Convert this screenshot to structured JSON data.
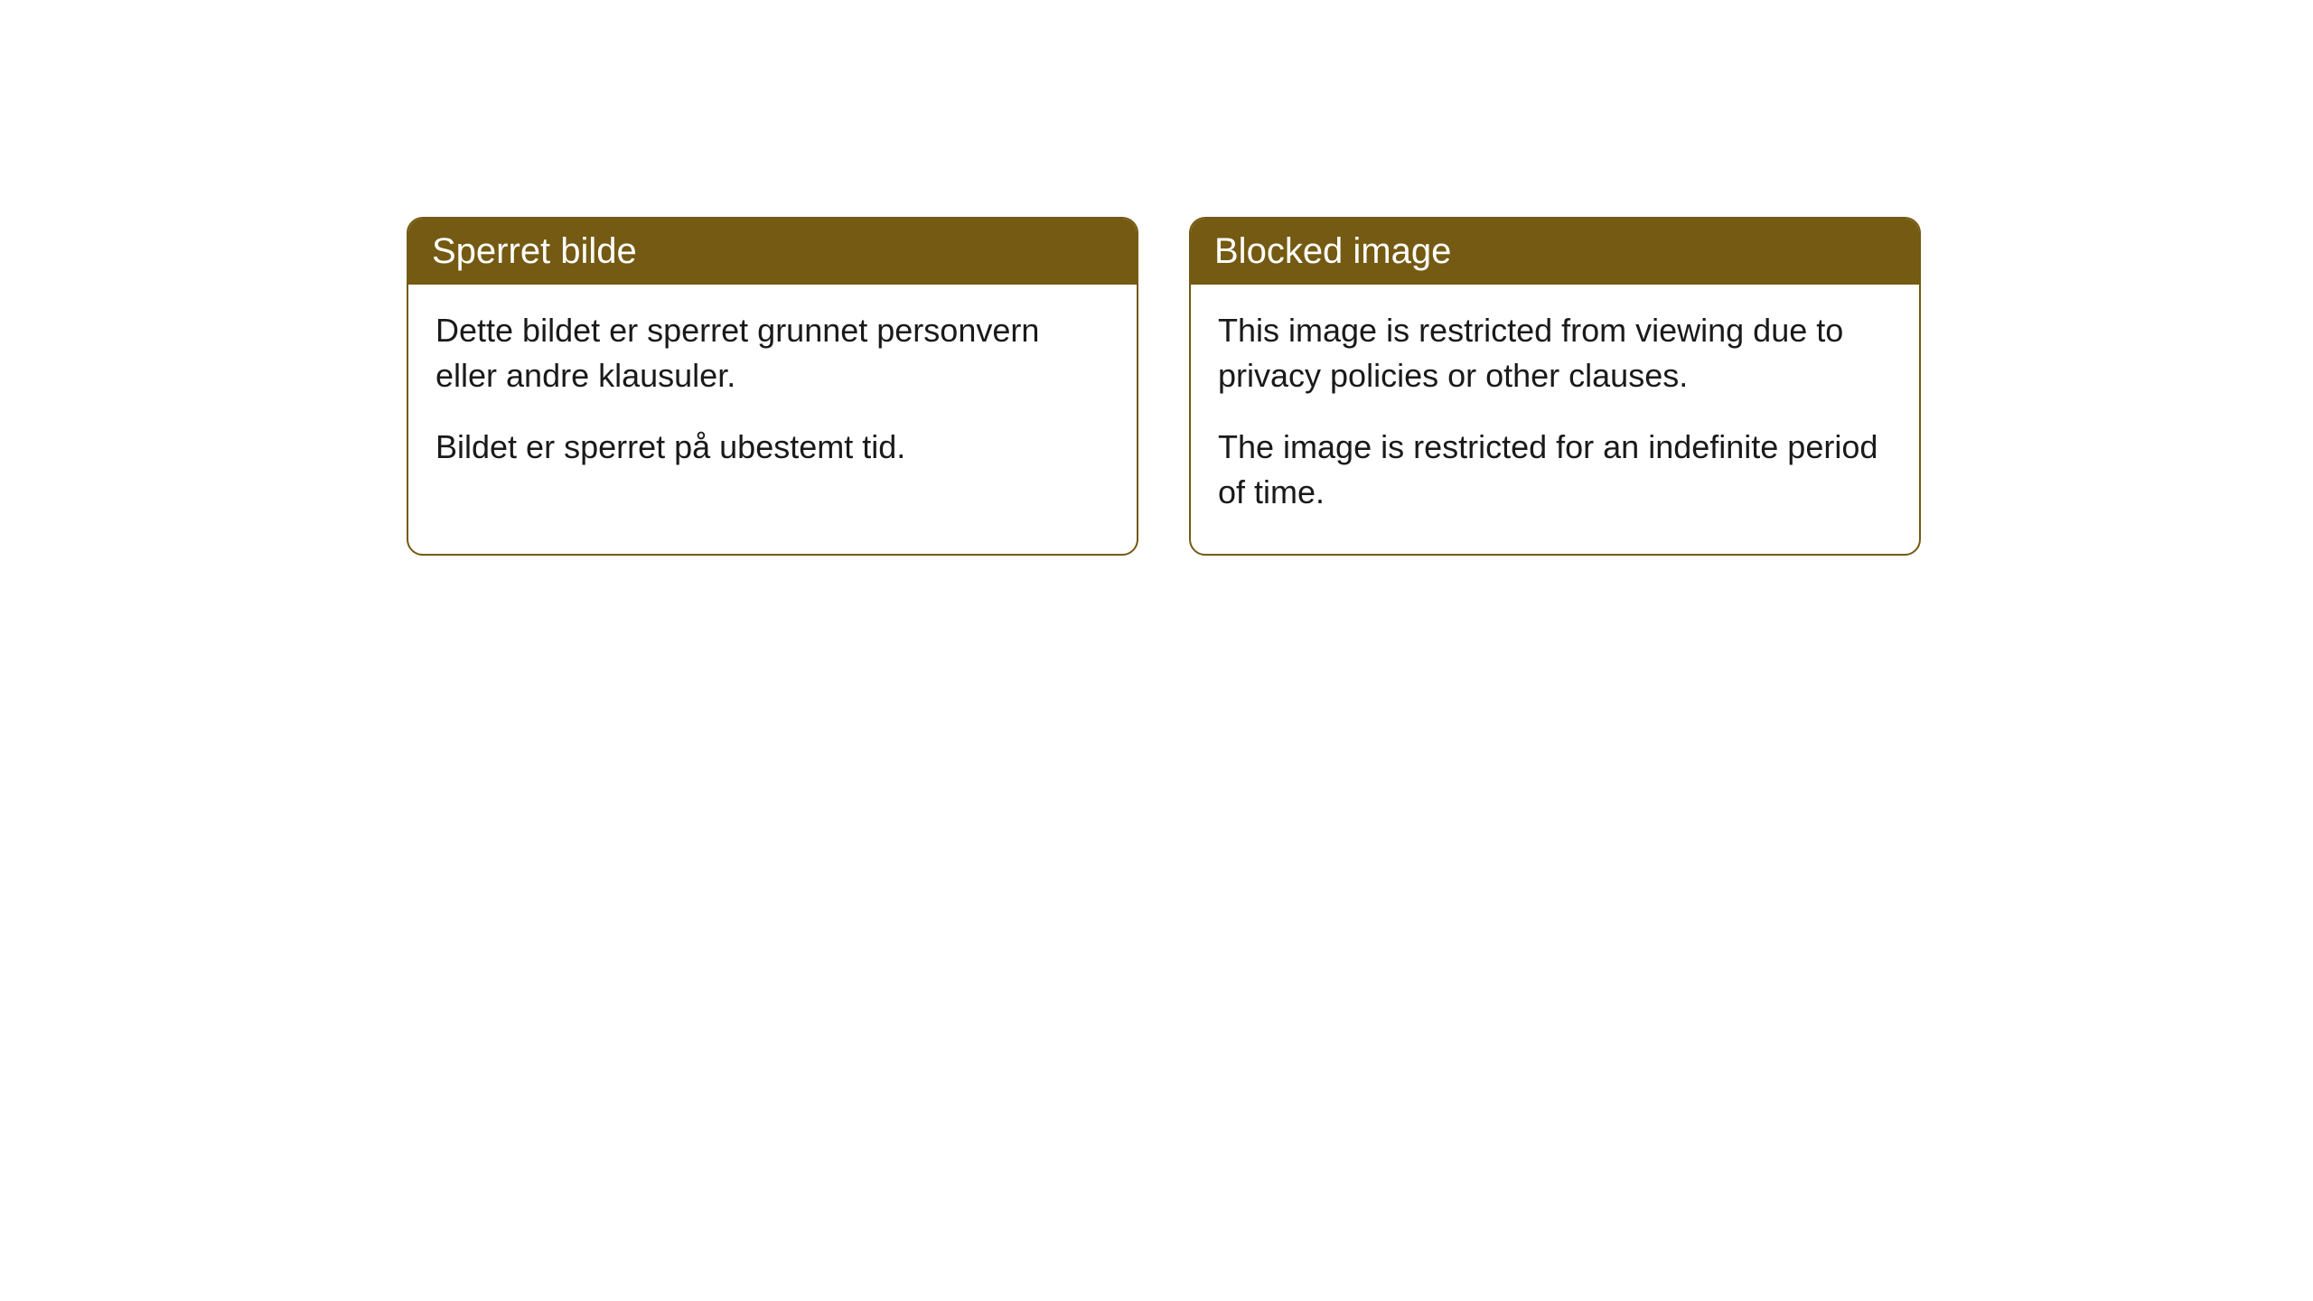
{
  "cards": [
    {
      "title": "Sperret bilde",
      "paragraph1": "Dette bildet er sperret grunnet personvern eller andre klausuler.",
      "paragraph2": "Bildet er sperret på ubestemt tid."
    },
    {
      "title": "Blocked image",
      "paragraph1": "This image is restricted from viewing due to privacy policies or other clauses.",
      "paragraph2": "The image is restricted for an indefinite period of time."
    }
  ],
  "style": {
    "header_background": "#745a12",
    "header_text_color": "#ffffff",
    "border_color": "#745a12",
    "body_background": "#ffffff",
    "body_text_color": "#1a1a1a",
    "border_radius": 18,
    "title_fontsize": 40,
    "body_fontsize": 36
  }
}
